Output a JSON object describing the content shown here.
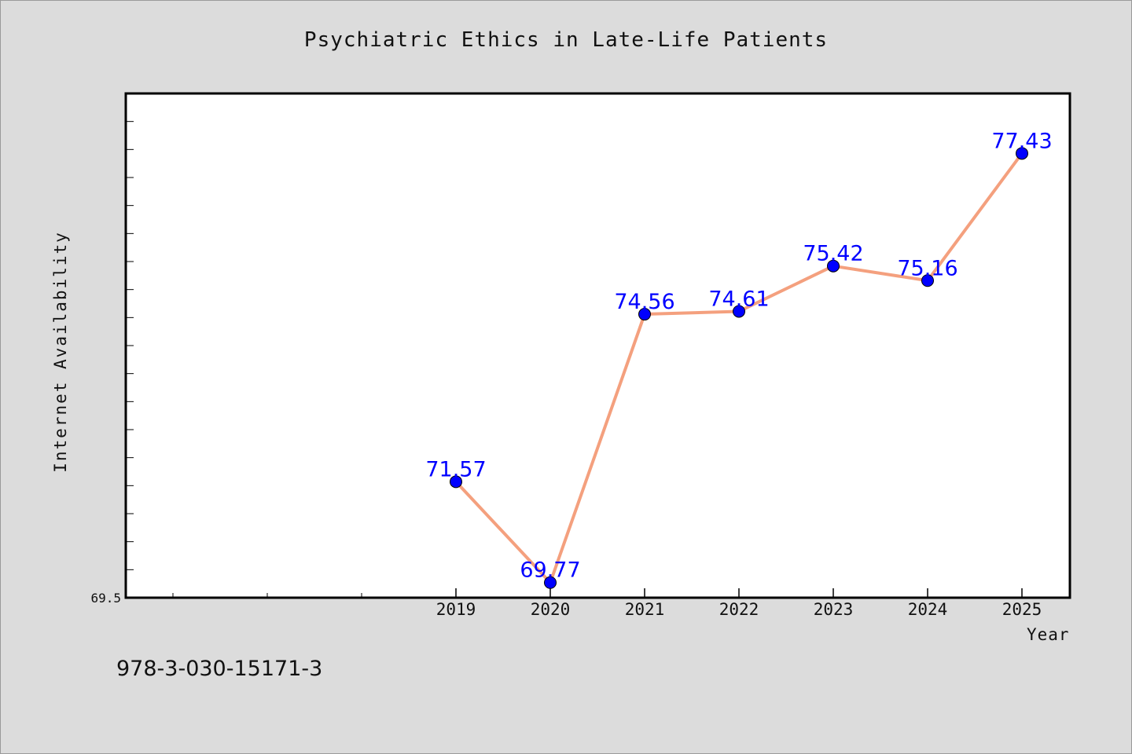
{
  "chart_data": {
    "type": "line",
    "title": "Psychiatric Ethics in Late-Life Patients",
    "xlabel": "Year",
    "ylabel": "Internet Availability",
    "categories": [
      "2019",
      "2020",
      "2021",
      "2022",
      "2023",
      "2024",
      "2025"
    ],
    "series": [
      {
        "values": [
          71.57,
          69.77,
          74.56,
          74.61,
          75.42,
          75.16,
          77.43
        ]
      }
    ],
    "data_labels": [
      "71.57",
      "69.77",
      "74.56",
      "74.61",
      "75.42",
      "75.16",
      "77.43"
    ],
    "y_tick_labels": [
      "69.5"
    ],
    "ylim": [
      69.5,
      78.5
    ],
    "grid": false,
    "colors": {
      "line": "#f4a07e",
      "marker": "#0000ff",
      "label": "#0000ff"
    }
  },
  "footer": {
    "isbn": "978-3-030-15171-3"
  }
}
